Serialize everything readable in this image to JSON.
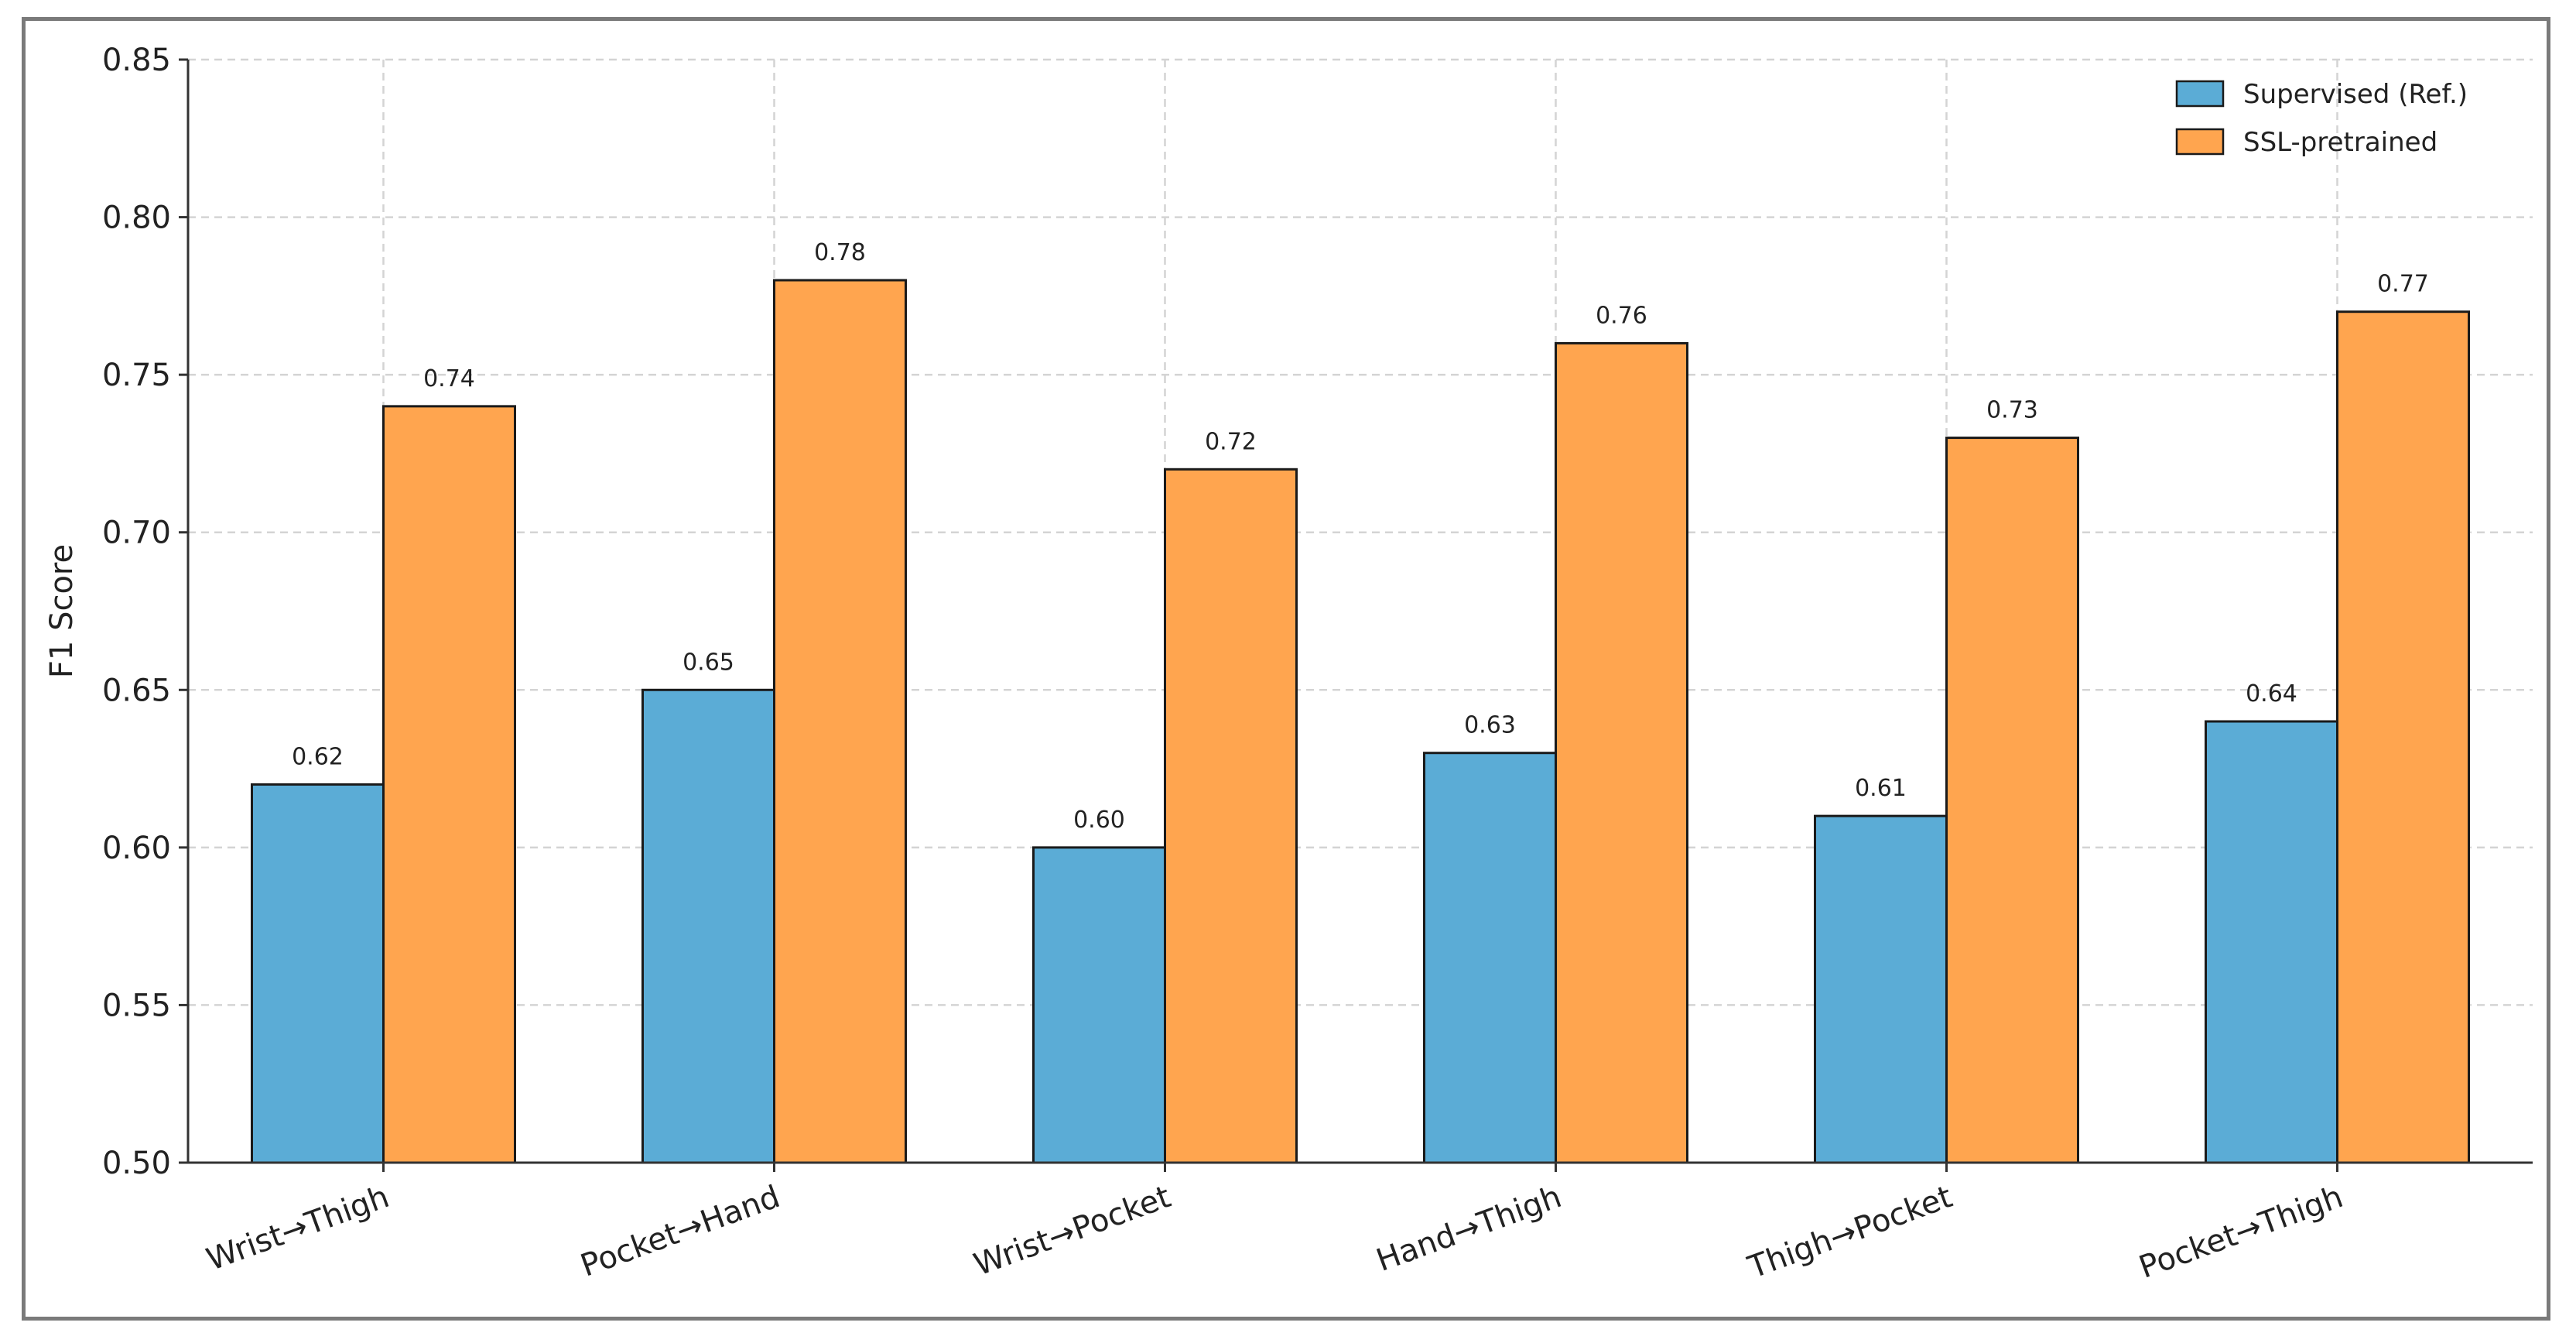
{
  "chart_data": {
    "type": "bar",
    "title": "",
    "xlabel": "",
    "ylabel": "F1 Score",
    "ylim": [
      0.5,
      0.85
    ],
    "yticks": [
      "0.50",
      "0.55",
      "0.60",
      "0.65",
      "0.70",
      "0.75",
      "0.80",
      "0.85"
    ],
    "categories": [
      "Wrist→Thigh",
      "Pocket→Hand",
      "Wrist→Pocket",
      "Hand→Thigh",
      "Thigh→Pocket",
      "Pocket→Thigh"
    ],
    "series": [
      {
        "name": "Supervised (Ref.)",
        "color": "#5bacd6",
        "values": [
          0.62,
          0.65,
          0.6,
          0.63,
          0.61,
          0.64
        ],
        "labels": [
          "0.62",
          "0.65",
          "0.60",
          "0.63",
          "0.61",
          "0.64"
        ]
      },
      {
        "name": "SSL-pretrained",
        "color": "#ffa54f",
        "values": [
          0.74,
          0.78,
          0.72,
          0.76,
          0.73,
          0.77
        ],
        "labels": [
          "0.74",
          "0.78",
          "0.72",
          "0.76",
          "0.73",
          "0.77"
        ]
      }
    ],
    "grid": true,
    "legend_position": "top-right"
  }
}
